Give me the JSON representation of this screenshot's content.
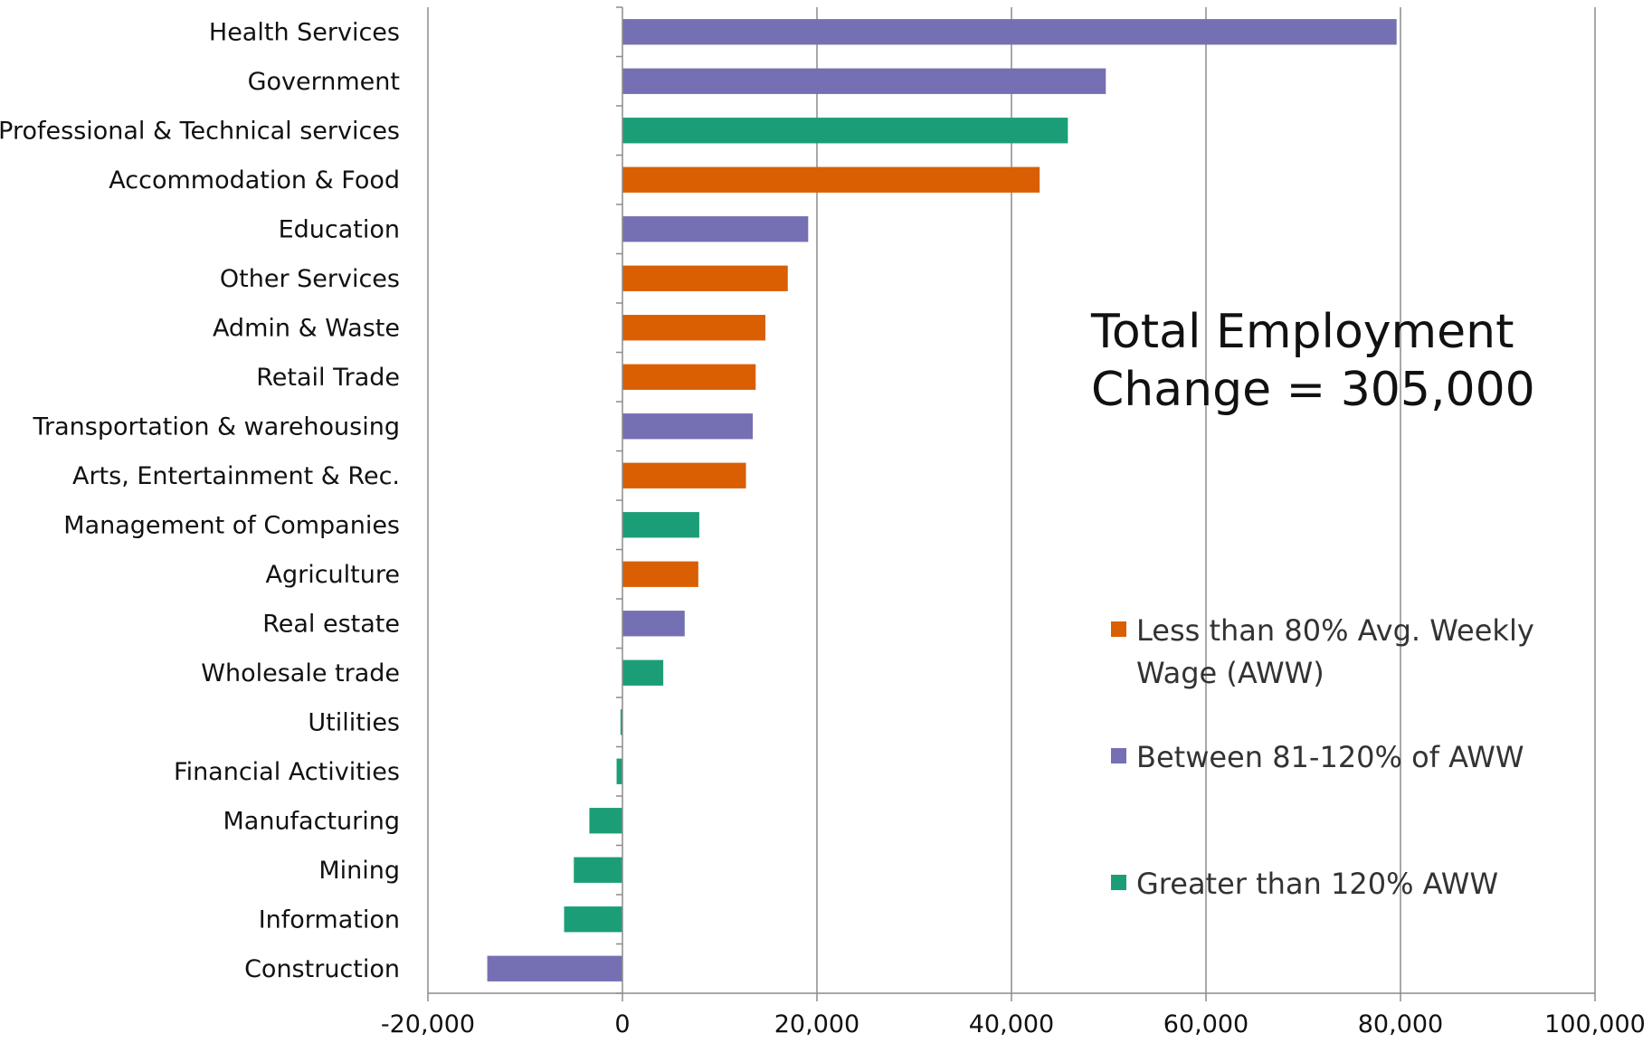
{
  "chart_data": {
    "type": "bar",
    "orientation": "horizontal",
    "title": "",
    "xlabel": "",
    "ylabel": "",
    "xlim": [
      -20000,
      100000
    ],
    "x_ticks": [
      -20000,
      0,
      20000,
      40000,
      60000,
      80000,
      100000
    ],
    "x_tick_labels": [
      "-20,000",
      "0",
      "20,000",
      "40,000",
      "60,000",
      "80,000",
      "100,000"
    ],
    "grid": true,
    "colors": {
      "low": "#d95f02",
      "mid": "#7570b3",
      "high": "#1b9e77"
    },
    "categories": [
      "Health Services",
      "Government",
      "Professional & Technical services",
      "Accommodation & Food",
      "Education",
      "Other Services",
      "Admin & Waste",
      "Retail Trade",
      "Transportation & warehousing",
      "Arts, Entertainment & Rec.",
      "Management of Companies",
      "Agriculture",
      "Real estate",
      "Wholesale trade",
      "Utilities",
      "Financial Activities",
      "Manufacturing",
      "Mining",
      "Information",
      "Construction"
    ],
    "values": [
      79600,
      49700,
      45800,
      42900,
      19100,
      17000,
      14700,
      13700,
      13400,
      12700,
      7900,
      7800,
      6400,
      4200,
      -200,
      -600,
      -3400,
      -5000,
      -6000,
      -13900
    ],
    "groups": [
      "mid",
      "mid",
      "high",
      "low",
      "mid",
      "low",
      "low",
      "low",
      "mid",
      "low",
      "high",
      "low",
      "mid",
      "high",
      "high",
      "high",
      "high",
      "high",
      "high",
      "mid"
    ],
    "legend": {
      "placement": "right",
      "entries": [
        {
          "key": "low",
          "line1": "Less than 80% Avg. Weekly",
          "line2": "Wage (AWW)"
        },
        {
          "key": "mid",
          "line1": "Between 81-120% of AWW",
          "line2": ""
        },
        {
          "key": "high",
          "line1": "Greater than 120% AWW",
          "line2": ""
        }
      ]
    },
    "annotation": {
      "line1": "Total Employment",
      "line2": "Change = 305,000"
    }
  }
}
